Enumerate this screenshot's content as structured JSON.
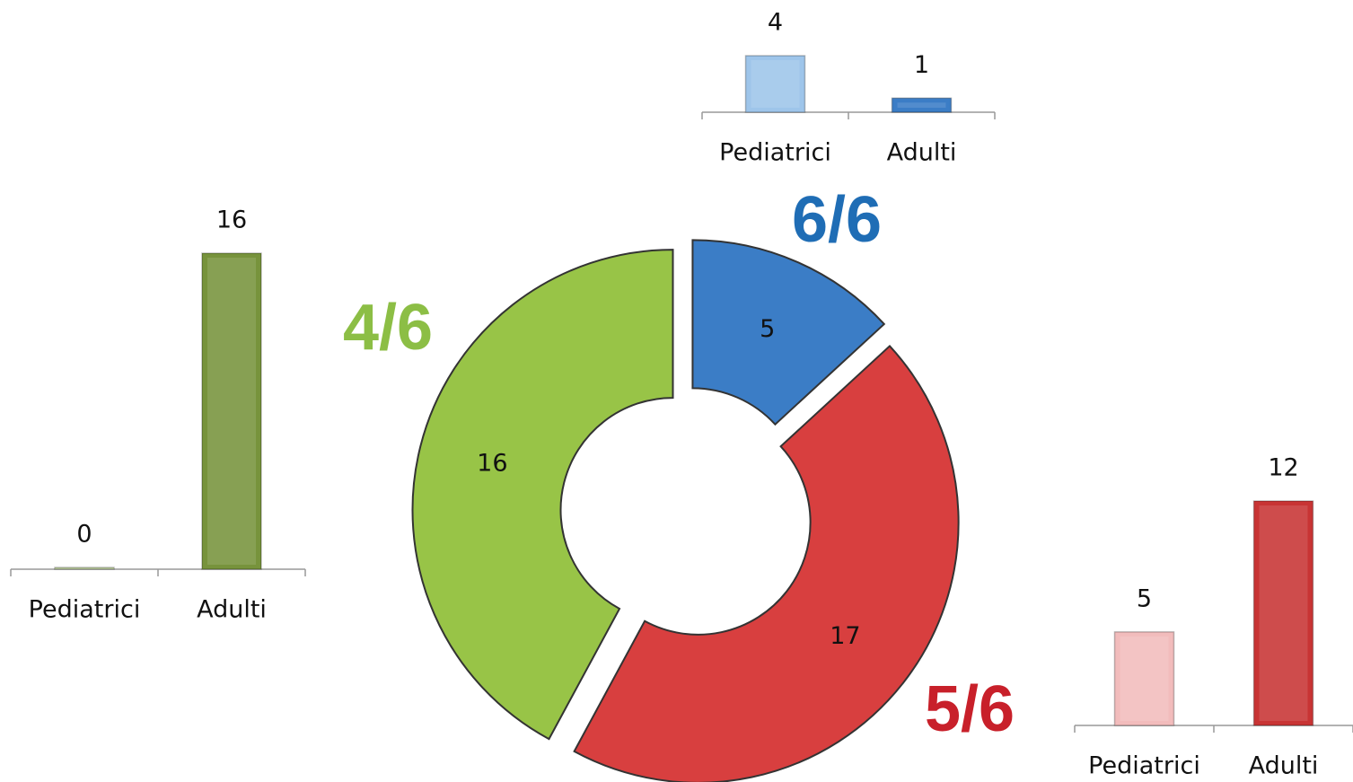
{
  "chart_data": [
    {
      "type": "pie",
      "values": [
        5,
        17,
        16
      ],
      "colors": [
        "#3b7dc6",
        "#d83f3f",
        "#98c447"
      ],
      "annotations": [
        "6/6",
        "5/6",
        "4/6"
      ],
      "annotation_colors": [
        "#1f6db5",
        "#c8202a",
        "#8cbe45"
      ]
    },
    {
      "type": "bar",
      "categories": [
        "Pediatrici",
        "Adulti"
      ],
      "values": [
        4,
        1
      ],
      "colors": [
        "#9ec5ea",
        "#3b7dc6"
      ],
      "ylim": [
        0,
        4
      ]
    },
    {
      "type": "bar",
      "categories": [
        "Pediatrici",
        "Adulti"
      ],
      "values": [
        0,
        16
      ],
      "colors": [
        "#c9d9a8",
        "#77933c"
      ],
      "ylim": [
        0,
        16
      ]
    },
    {
      "type": "bar",
      "categories": [
        "Pediatrici",
        "Adulti"
      ],
      "values": [
        5,
        12
      ],
      "colors": [
        "#f2bcbc",
        "#c83434"
      ],
      "ylim": [
        0,
        12
      ]
    }
  ]
}
